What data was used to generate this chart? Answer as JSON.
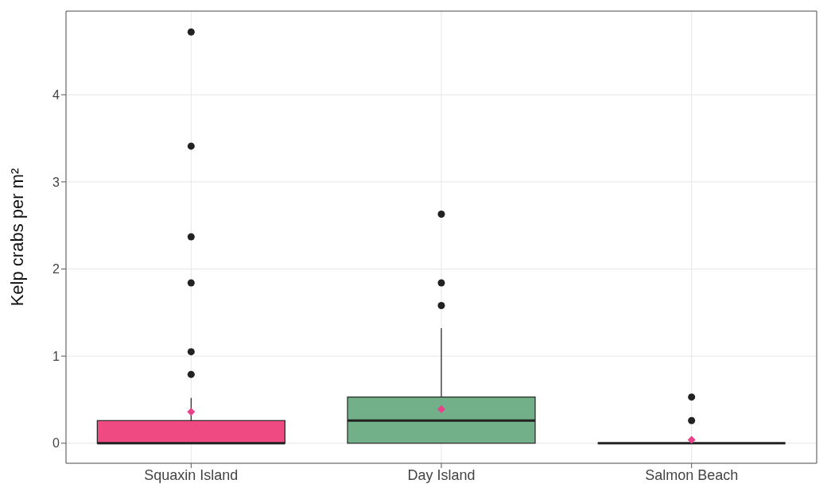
{
  "chart_data": {
    "type": "box",
    "ylabel": "Kelp crabs per m²",
    "categories": [
      "Squaxin Island",
      "Day Island",
      "Salmon Beach"
    ],
    "colors": [
      "#ef4a81",
      "#72b08a",
      null
    ],
    "boxes": [
      {
        "low": 0,
        "q1": 0,
        "median": 0,
        "q3": 0.26,
        "high": 0.52,
        "mean": 0.36,
        "outliers": [
          4.72,
          3.41,
          2.37,
          1.84,
          1.05,
          0.79
        ]
      },
      {
        "low": 0,
        "q1": 0,
        "median": 0.26,
        "q3": 0.53,
        "high": 1.32,
        "mean": 0.39,
        "outliers": [
          2.63,
          1.84,
          1.58
        ]
      },
      {
        "low": 0,
        "q1": 0,
        "median": 0,
        "q3": 0,
        "high": 0,
        "mean": 0.04,
        "outliers": [
          0.53,
          0.26
        ]
      }
    ],
    "ylim": [
      -0.23,
      4.96
    ],
    "yticks": [
      0,
      1,
      2,
      3,
      4
    ],
    "grid": true
  }
}
